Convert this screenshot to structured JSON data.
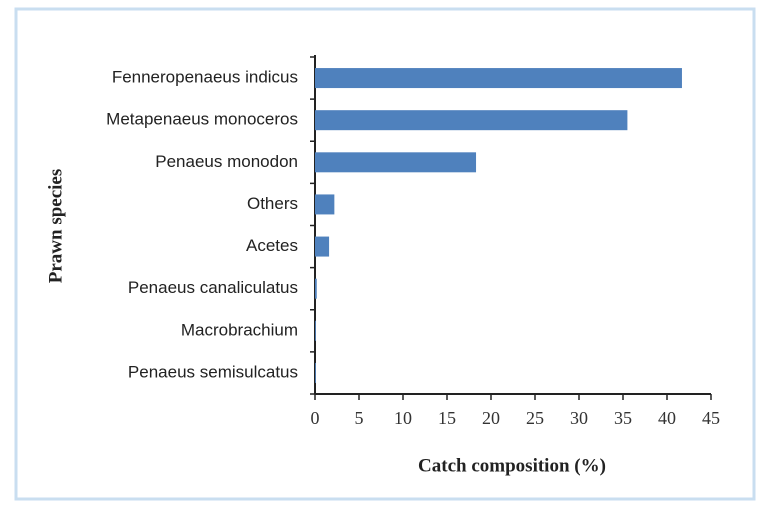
{
  "chart_data": {
    "type": "bar",
    "orientation": "horizontal",
    "xlabel": "Catch composition (%)",
    "ylabel": "Prawn species",
    "categories": [
      "Fenneropenaeus indicus",
      "Metapenaeus monoceros",
      "Penaeus monodon",
      "Others",
      "Acetes",
      "Penaeus canaliculatus",
      "Macrobrachium",
      "Penaeus semisulcatus"
    ],
    "values": [
      41.7,
      35.5,
      18.3,
      2.2,
      1.6,
      0.2,
      0.1,
      0.1
    ],
    "color": "#4f81bd",
    "xlim": [
      0,
      45
    ],
    "xticks": [
      0,
      5,
      10,
      15,
      20,
      25,
      30,
      35,
      40,
      45
    ],
    "grid": false
  }
}
